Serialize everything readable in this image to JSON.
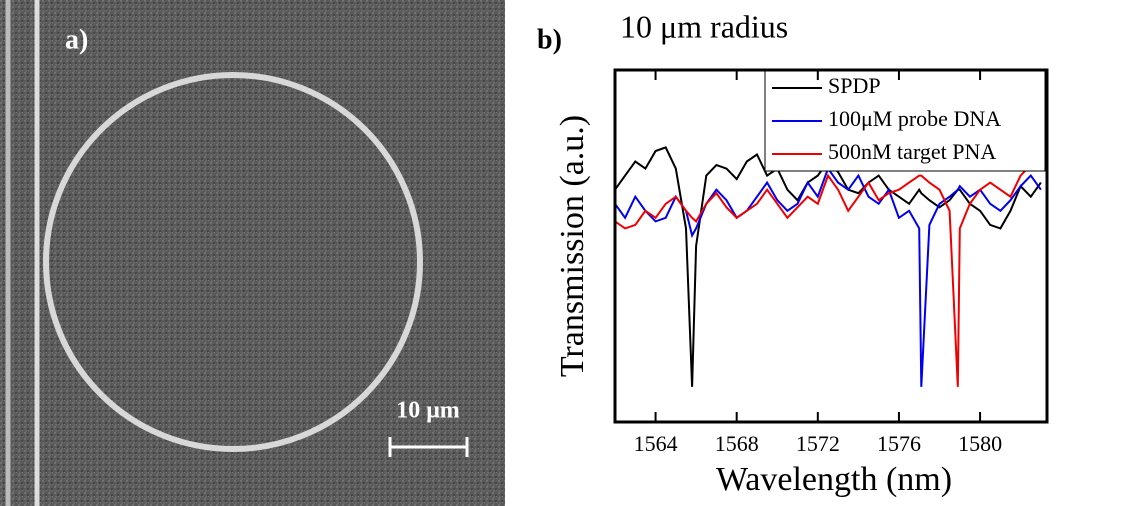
{
  "panel_a": {
    "label": "a)",
    "scale_bar": "10 μm"
  },
  "chart_data": {
    "type": "line",
    "panel_label": "b)",
    "title": "10 μm radius",
    "xlabel": "Wavelength (nm)",
    "ylabel": "Transmission (a.u.)",
    "x": [
      1562,
      1562.5,
      1563,
      1563.5,
      1564,
      1564.5,
      1565,
      1565.5,
      1565.8,
      1566,
      1566.5,
      1567,
      1567.5,
      1568,
      1568.5,
      1569,
      1569.5,
      1570,
      1570.5,
      1571,
      1571.5,
      1572,
      1572.5,
      1573,
      1573.5,
      1574,
      1574.5,
      1575,
      1575.5,
      1576,
      1576.5,
      1577,
      1577.1,
      1577.5,
      1578,
      1578.5,
      1578.9,
      1579,
      1579.5,
      1580,
      1580.5,
      1581,
      1581.5,
      1582,
      1582.5,
      1583
    ],
    "series": [
      {
        "name": "SPDP",
        "color": "#000000",
        "values": [
          0.66,
          0.7,
          0.74,
          0.72,
          0.77,
          0.78,
          0.72,
          0.55,
          0.1,
          0.5,
          0.7,
          0.73,
          0.72,
          0.69,
          0.74,
          0.76,
          0.7,
          0.72,
          0.66,
          0.63,
          0.68,
          0.7,
          0.74,
          0.71,
          0.66,
          0.65,
          0.68,
          0.7,
          0.66,
          0.64,
          0.62,
          0.66,
          0.65,
          0.63,
          0.61,
          0.63,
          0.66,
          0.66,
          0.62,
          0.6,
          0.56,
          0.55,
          0.6,
          0.67,
          0.64,
          0.68
        ]
      },
      {
        "name": "100μM probe DNA",
        "color": "#0000ee",
        "values": [
          0.62,
          0.58,
          0.64,
          0.6,
          0.57,
          0.58,
          0.64,
          0.6,
          0.53,
          0.55,
          0.62,
          0.66,
          0.63,
          0.58,
          0.6,
          0.64,
          0.68,
          0.63,
          0.6,
          0.62,
          0.68,
          0.64,
          0.72,
          0.68,
          0.66,
          0.7,
          0.64,
          0.62,
          0.66,
          0.58,
          0.6,
          0.55,
          0.1,
          0.56,
          0.62,
          0.64,
          0.66,
          0.67,
          0.64,
          0.66,
          0.62,
          0.6,
          0.63,
          0.67,
          0.7,
          0.66
        ]
      },
      {
        "name": "500nM target PNA",
        "color": "#ee0000",
        "values": [
          0.57,
          0.55,
          0.56,
          0.6,
          0.58,
          0.62,
          0.64,
          0.6,
          0.58,
          0.57,
          0.62,
          0.65,
          0.61,
          0.58,
          0.6,
          0.62,
          0.66,
          0.62,
          0.58,
          0.61,
          0.64,
          0.62,
          0.7,
          0.66,
          0.6,
          0.64,
          0.68,
          0.63,
          0.65,
          0.66,
          0.68,
          0.7,
          0.7,
          0.68,
          0.66,
          0.6,
          0.1,
          0.55,
          0.62,
          0.66,
          0.68,
          0.66,
          0.64,
          0.7,
          0.73,
          0.78
        ]
      }
    ],
    "xlim": [
      1562,
      1583.3
    ],
    "ylim": [
      0,
      1
    ],
    "xticks": [
      1564,
      1568,
      1572,
      1576,
      1580
    ],
    "legend": "upper right"
  }
}
